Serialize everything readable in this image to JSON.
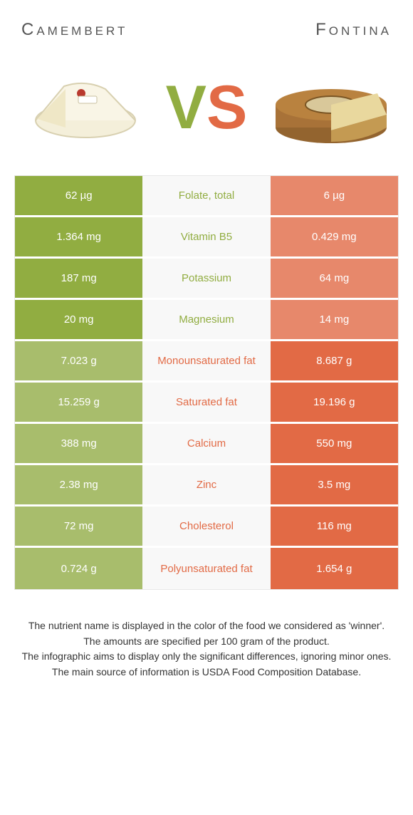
{
  "titles": {
    "left": "Camembert",
    "right": "Fontina"
  },
  "vs": {
    "v": "V",
    "s": "S"
  },
  "colors": {
    "left": "#91ad41",
    "right": "#e26a45",
    "left_dim": "#a8bd6c",
    "right_dim": "#e7886b",
    "mid_bg": "#f8f8f8"
  },
  "rows": [
    {
      "label": "Folate, total",
      "left": "62 µg",
      "right": "6 µg",
      "winner": "left"
    },
    {
      "label": "Vitamin B5",
      "left": "1.364 mg",
      "right": "0.429 mg",
      "winner": "left"
    },
    {
      "label": "Potassium",
      "left": "187 mg",
      "right": "64 mg",
      "winner": "left"
    },
    {
      "label": "Magnesium",
      "left": "20 mg",
      "right": "14 mg",
      "winner": "left"
    },
    {
      "label": "Monounsaturated fat",
      "left": "7.023 g",
      "right": "8.687 g",
      "winner": "right"
    },
    {
      "label": "Saturated fat",
      "left": "15.259 g",
      "right": "19.196 g",
      "winner": "right"
    },
    {
      "label": "Calcium",
      "left": "388 mg",
      "right": "550 mg",
      "winner": "right"
    },
    {
      "label": "Zinc",
      "left": "2.38 mg",
      "right": "3.5 mg",
      "winner": "right"
    },
    {
      "label": "Cholesterol",
      "left": "72 mg",
      "right": "116 mg",
      "winner": "right"
    },
    {
      "label": "Polyunsaturated fat",
      "left": "0.724 g",
      "right": "1.654 g",
      "winner": "right"
    }
  ],
  "footer": [
    "The nutrient name is displayed in the color of the food we considered as 'winner'.",
    "The amounts are specified per 100 gram of the product.",
    "The infographic aims to display only the significant differences, ignoring minor ones.",
    "The main source of information is USDA Food Composition Database."
  ]
}
